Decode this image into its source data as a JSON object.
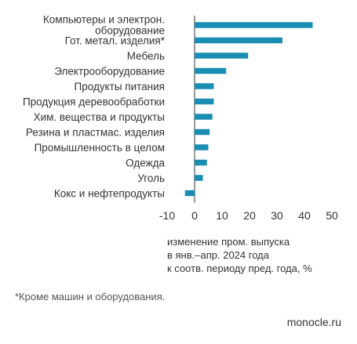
{
  "chart_data": {
    "type": "bar",
    "orientation": "horizontal",
    "categories": [
      [
        "Компьютеры и электрон.",
        "оборудование"
      ],
      [
        "Гот. метал. изделия*"
      ],
      [
        "Мебель"
      ],
      [
        "Электрооборудование"
      ],
      [
        "Продукты питания"
      ],
      [
        "Продукция деревообработки"
      ],
      [
        "Хим. вещества и продукты"
      ],
      [
        "Резина и пластмас. изделия"
      ],
      [
        "Промышленность в целом"
      ],
      [
        "Одежда"
      ],
      [
        "Уголь"
      ],
      [
        "Кокс и нефтепродукты"
      ]
    ],
    "values": [
      43.0,
      32.0,
      19.5,
      11.5,
      7.0,
      7.0,
      6.5,
      5.5,
      5.0,
      4.5,
      3.0,
      -3.5
    ],
    "xlim": [
      -10,
      50
    ],
    "xticks": [
      "-10",
      "0",
      "10",
      "20",
      "30",
      "40",
      "50"
    ],
    "xlabel_lines": [
      "изменение пром. выпуска",
      "в янв.–апр. 2024 года",
      "к соотв. периоду пред. года, %"
    ],
    "grid": false,
    "bar_color": "#1a8db3"
  },
  "footnote": "*Кроме машин и оборудования.",
  "source": "monocle.ru"
}
